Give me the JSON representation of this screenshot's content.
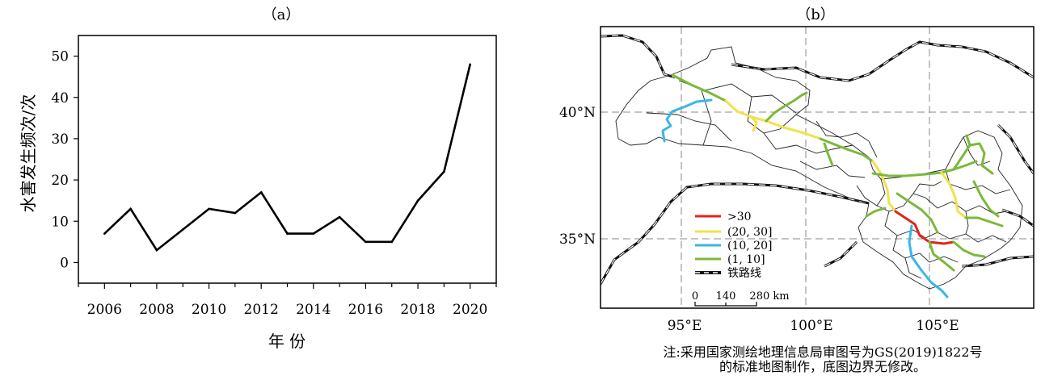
{
  "chart_data": [
    {
      "type": "line",
      "panel_label": "（a）",
      "title": "",
      "xlabel": "年 份",
      "ylabel": "水害发生频次/次",
      "x": [
        2006,
        2007,
        2008,
        2009,
        2010,
        2011,
        2012,
        2013,
        2014,
        2015,
        2016,
        2017,
        2018,
        2019,
        2020
      ],
      "xticks": [
        "2006",
        "2008",
        "2010",
        "2012",
        "2014",
        "2016",
        "2018",
        "2020"
      ],
      "xlim": [
        2005,
        2021
      ],
      "yticks": [
        "0",
        "10",
        "20",
        "30",
        "40",
        "50"
      ],
      "ylim": [
        -5,
        55
      ],
      "series": [
        {
          "values": [
            7,
            13,
            3,
            8,
            13,
            12,
            17,
            7,
            7,
            11,
            5,
            5,
            15,
            22,
            48
          ]
        }
      ],
      "line_color": "#000000",
      "grid": false
    },
    {
      "type": "map",
      "panel_label": "（b）",
      "lat_labels": [
        "40°N",
        "35°N"
      ],
      "lon_labels": [
        "95°E",
        "100°E",
        "105°E"
      ],
      "legend": {
        "placement": "bottom-left",
        "items": [
          {
            "label": ">30",
            "color": "#e0261c"
          },
          {
            "label": "(20, 30]",
            "color": "#f0e24a"
          },
          {
            "label": "(10, 20]",
            "color": "#3bb6e8"
          },
          {
            "label": "(1, 10]",
            "color": "#7ab93a"
          },
          {
            "label": "铁路线",
            "color": "#000000"
          }
        ]
      },
      "scale_bar": {
        "labels": [
          "0",
          "140",
          "280 km"
        ]
      }
    }
  ],
  "note": {
    "line1": "注:采用国家测绘地理信息局审图号为GS(2019)1822号",
    "line2": "的标准地图制作，底图边界无修改。"
  }
}
